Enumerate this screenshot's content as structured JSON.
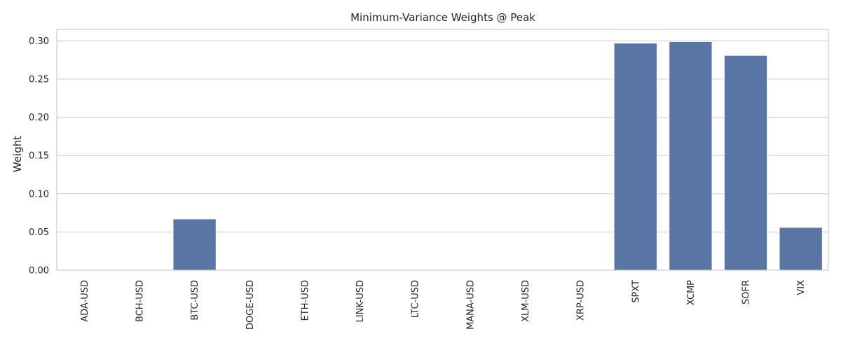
{
  "chart_data": {
    "type": "bar",
    "title": "Minimum-Variance Weights @ Peak",
    "xlabel": "",
    "ylabel": "Weight",
    "categories": [
      "ADA-USD",
      "BCH-USD",
      "BTC-USD",
      "DOGE-USD",
      "ETH-USD",
      "LINK-USD",
      "LTC-USD",
      "MANA-USD",
      "XLM-USD",
      "XRP-USD",
      "SPXT",
      "XCMP",
      "SOFR",
      "VIX"
    ],
    "values": [
      0.0,
      0.0,
      0.067,
      0.0,
      0.0,
      0.0,
      0.0,
      0.0,
      0.0,
      0.0,
      0.297,
      0.299,
      0.281,
      0.056
    ],
    "ylim": [
      0,
      0.315
    ],
    "yticks": [
      0.0,
      0.05,
      0.1,
      0.15,
      0.2,
      0.25,
      0.3
    ],
    "ytick_labels": [
      "0.00",
      "0.05",
      "0.10",
      "0.15",
      "0.20",
      "0.25",
      "0.30"
    ],
    "grid": "horizontal",
    "bar_color": "#5875a4",
    "grid_color": "#cccccc",
    "axes_color": "#cccccc"
  }
}
